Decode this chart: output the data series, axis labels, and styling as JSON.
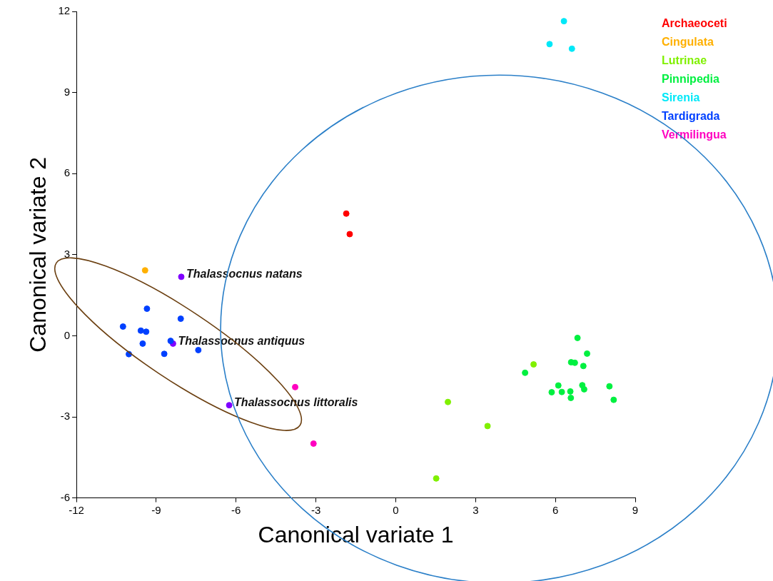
{
  "chart_data": {
    "type": "scatter",
    "xlabel": "Canonical variate 1",
    "ylabel": "Canonical variate 2",
    "xlim": [
      -12,
      9
    ],
    "xticks": [
      -12,
      -9,
      -6,
      -3,
      0,
      3,
      6,
      9
    ],
    "ylim": [
      -6,
      12
    ],
    "yticks": [
      -6,
      -3,
      0,
      3,
      6,
      9,
      12
    ],
    "grid": false,
    "legend": "top right",
    "marker": "circle",
    "series": [
      {
        "name": "Archaeoceti",
        "color": "#ff0000",
        "x": [
          -1.86,
          -1.73
        ],
        "values": [
          4.52,
          3.76
        ]
      },
      {
        "name": "Cingulata",
        "color": "#ffb000",
        "x": [
          -9.42
        ],
        "values": [
          2.42
        ]
      },
      {
        "name": "Lutrinae",
        "color": "#80f000",
        "x": [
          5.18,
          1.96,
          3.45,
          1.52
        ],
        "values": [
          -1.06,
          -2.45,
          -3.34,
          -5.28
        ]
      },
      {
        "name": "Pinnipedia",
        "color": "#00f040",
        "x": [
          6.83,
          7.19,
          6.59,
          6.73,
          7.05,
          4.86,
          6.11,
          7.01,
          7.08,
          8.03,
          5.86,
          6.24,
          6.56,
          6.58,
          8.19
        ],
        "values": [
          -0.08,
          -0.66,
          -0.98,
          -1.0,
          -1.12,
          -1.37,
          -1.84,
          -1.83,
          -1.98,
          -1.87,
          -2.09,
          -2.08,
          -2.06,
          -2.3,
          -2.37
        ]
      },
      {
        "name": "Sirenia",
        "color": "#00e8f8",
        "x": [
          6.32,
          5.78,
          6.62
        ],
        "values": [
          11.64,
          10.79,
          10.62
        ]
      },
      {
        "name": "Tardigrada",
        "color": "#0040ff",
        "x": [
          -10.25,
          -9.35,
          -9.58,
          -9.38,
          -8.08,
          -9.51,
          -10.03,
          -8.7,
          -8.46,
          -7.42
        ],
        "values": [
          0.34,
          1.0,
          0.19,
          0.15,
          0.63,
          -0.29,
          -0.68,
          -0.67,
          -0.19,
          -0.53
        ]
      },
      {
        "name": "Vermilingua",
        "color": "#ff00c0",
        "x": [
          -3.78,
          -3.09
        ],
        "values": [
          -1.9,
          -3.99
        ]
      },
      {
        "color": "#8000ff",
        "x": [
          -8.06,
          -8.37,
          -6.26
        ],
        "values": [
          2.18,
          -0.29,
          -2.57
        ]
      }
    ],
    "annotations": [
      {
        "text": "Thalassocnus natans",
        "x": -8.06,
        "y": 2.18
      },
      {
        "text": "Thalassocnus antiquus",
        "x": -8.37,
        "y": -0.29
      },
      {
        "text": "Thalassocnus littoralis",
        "x": -6.26,
        "y": -2.57
      }
    ]
  }
}
